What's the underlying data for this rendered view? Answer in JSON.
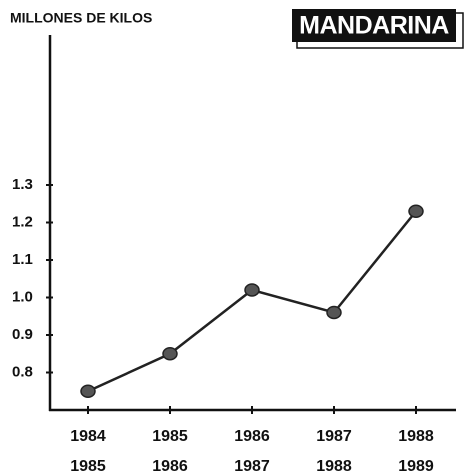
{
  "chart_data": {
    "type": "line",
    "title": "MANDARINA",
    "y_label": "MILLONES DE KILOS",
    "categories": [
      [
        "1984",
        "1985"
      ],
      [
        "1985",
        "1986"
      ],
      [
        "1986",
        "1987"
      ],
      [
        "1987",
        "1988"
      ],
      [
        "1988",
        "1989"
      ]
    ],
    "values": [
      0.75,
      0.85,
      1.02,
      0.96,
      1.23
    ],
    "color": "#222222",
    "ylim": [
      0.7,
      1.7
    ],
    "yticks": [
      0.8,
      0.9,
      {
        "value": 1.0,
        "label": "1.0"
      },
      1.1,
      1.2,
      1.3
    ],
    "grid": false
  }
}
